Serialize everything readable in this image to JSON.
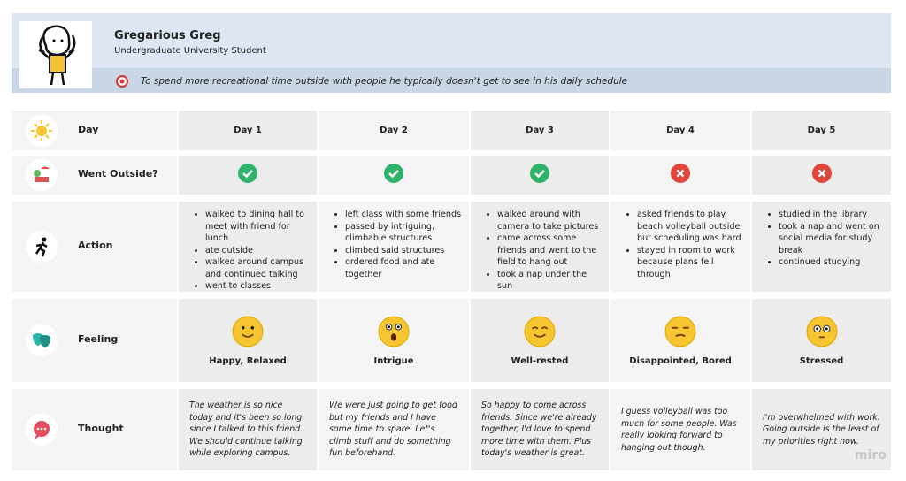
{
  "persona": {
    "name": "Gregarious Greg",
    "role": "Undergraduate University Student",
    "goal": "To spend more recreational time outside with people he typically doesn't get to see in his daily schedule"
  },
  "row_labels": [
    "Day",
    "Went Outside?",
    "Action",
    "Feeling",
    "Thought"
  ],
  "days": [
    {
      "label": "Day 1",
      "went_outside": true,
      "actions": [
        "walked to dining hall to meet with friend for lunch",
        "ate outside",
        "walked around campus and continued talking",
        "went to classes"
      ],
      "feeling": "Happy, Relaxed",
      "thought": "The weather is so nice today and it's been so long since I talked to this friend. We should continue talking while exploring campus."
    },
    {
      "label": "Day 2",
      "went_outside": true,
      "actions": [
        "left class with some friends",
        "passed by intriguing, climbable structures",
        "climbed said structures",
        "ordered food and ate together"
      ],
      "feeling": "Intrigue",
      "thought": "We were just going to get food but my friends and I have some time to spare. Let's climb stuff and do something fun beforehand."
    },
    {
      "label": "Day 3",
      "went_outside": true,
      "actions": [
        "walked around with camera to take pictures",
        "came across some friends and went to the field to hang out",
        "took a nap under the sun"
      ],
      "feeling": "Well-rested",
      "thought": "So happy to come across friends. Since we're already together, I'd love to spend more time with them. Plus today's weather is great."
    },
    {
      "label": "Day 4",
      "went_outside": false,
      "actions": [
        "asked friends to play beach volleyball outside but scheduling was hard",
        "stayed in room to work because plans fell through"
      ],
      "feeling": "Disappointed, Bored",
      "thought": "I guess volleyball was too much for some people. Was really looking forward to hanging out though."
    },
    {
      "label": "Day 5",
      "went_outside": false,
      "actions": [
        "studied in the library",
        "took a nap and went on social media for study break",
        "continued studying"
      ],
      "feeling": "Stressed",
      "thought": "I'm overwhelmed with work. Going outside is the least of my priorities right now."
    }
  ],
  "watermark": "miro"
}
